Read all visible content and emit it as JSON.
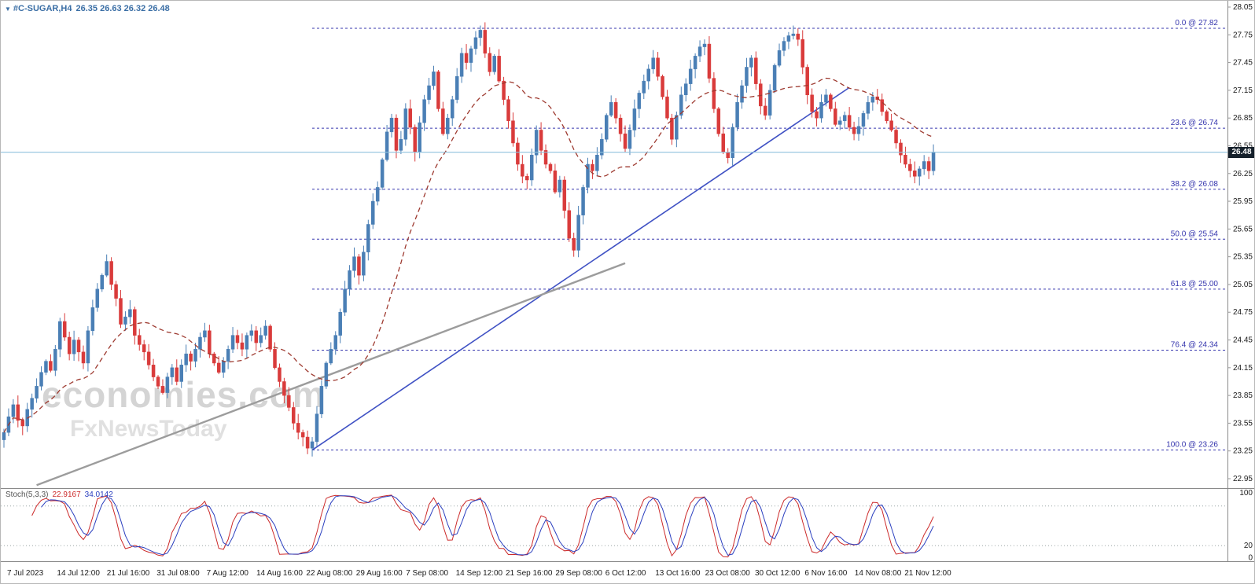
{
  "header": {
    "symbol": "#C-SUGAR,H4",
    "quote": "26.35 26.63 26.32 26.48"
  },
  "watermark": {
    "line1": "economies.com",
    "line2": "FxNewsToday"
  },
  "colors": {
    "up": "#4a7fb5",
    "down": "#d93b3b",
    "ma": "#9e3a30",
    "fib": "#3434ad",
    "trend_blue": "#4052c4",
    "trend_gray": "#9c9c9c",
    "price_line": "#8fc1dd",
    "badge_bg": "#15202b",
    "axis_text": "#1a1a1a",
    "separator": "#8a8a8a",
    "stoch_main": "#cc2a2a",
    "stoch_signal": "#2b3fbf",
    "stoch_level": "#9aa6a6"
  },
  "chart_data": {
    "type": "candlestick",
    "symbol": "#C-SUGAR",
    "timeframe": "H4",
    "quote": {
      "open": "26.35",
      "high": "26.63",
      "low": "26.32",
      "close": "26.48"
    },
    "current_price": "26.48",
    "y_axis": {
      "min": 22.95,
      "max": 28.05,
      "tick_step": 0.3,
      "ticks": [
        "28.05",
        "27.75",
        "27.45",
        "27.15",
        "26.85",
        "26.55",
        "26.25",
        "25.95",
        "25.65",
        "25.35",
        "25.05",
        "24.75",
        "24.45",
        "24.15",
        "23.85",
        "23.55",
        "23.25",
        "22.95"
      ]
    },
    "x_ticks": [
      "7 Jul 2023",
      "14 Jul 12:00",
      "21 Jul 16:00",
      "31 Jul 08:00",
      "7 Aug 12:00",
      "14 Aug 16:00",
      "22 Aug 08:00",
      "29 Aug 16:00",
      "7 Sep 08:00",
      "14 Sep 12:00",
      "21 Sep 16:00",
      "29 Sep 08:00",
      "6 Oct 12:00",
      "13 Oct 16:00",
      "23 Oct 08:00",
      "30 Oct 12:00",
      "6 Nov 16:00",
      "14 Nov 08:00",
      "21 Nov 12:00"
    ],
    "closes": [
      23.45,
      23.62,
      23.75,
      23.58,
      23.52,
      23.7,
      23.82,
      23.95,
      24.1,
      24.22,
      24.12,
      24.35,
      24.65,
      24.48,
      24.3,
      24.45,
      24.32,
      24.2,
      24.55,
      24.8,
      25.0,
      25.15,
      25.3,
      25.05,
      24.9,
      24.62,
      24.7,
      24.78,
      24.5,
      24.4,
      24.32,
      24.18,
      24.05,
      23.95,
      23.88,
      24.05,
      24.15,
      24.0,
      24.18,
      24.3,
      24.22,
      24.35,
      24.48,
      24.55,
      24.3,
      24.2,
      24.1,
      24.22,
      24.35,
      24.5,
      24.42,
      24.35,
      24.5,
      24.55,
      24.42,
      24.5,
      24.6,
      24.35,
      24.15,
      24.0,
      23.85,
      23.72,
      23.55,
      23.45,
      23.4,
      23.28,
      23.35,
      23.65,
      23.95,
      24.2,
      24.35,
      24.5,
      24.75,
      25.0,
      25.2,
      25.35,
      25.15,
      25.4,
      25.7,
      25.95,
      26.1,
      26.4,
      26.7,
      26.85,
      26.5,
      26.62,
      26.95,
      26.75,
      26.48,
      26.8,
      27.05,
      27.2,
      27.35,
      26.95,
      26.68,
      26.85,
      27.05,
      27.3,
      27.55,
      27.45,
      27.6,
      27.72,
      27.8,
      27.55,
      27.35,
      27.52,
      27.25,
      27.05,
      26.82,
      26.58,
      26.35,
      26.22,
      26.18,
      26.45,
      26.72,
      26.5,
      26.35,
      26.28,
      26.05,
      26.18,
      25.85,
      25.55,
      25.42,
      25.8,
      26.1,
      26.35,
      26.28,
      26.45,
      26.62,
      26.88,
      27.02,
      26.85,
      26.68,
      26.52,
      26.72,
      26.95,
      27.12,
      27.25,
      27.38,
      27.5,
      27.3,
      27.08,
      26.85,
      26.62,
      26.88,
      27.1,
      27.22,
      27.38,
      27.52,
      27.62,
      27.65,
      27.28,
      26.95,
      26.68,
      26.48,
      26.42,
      26.75,
      27.02,
      27.2,
      27.4,
      27.5,
      27.22,
      26.98,
      26.88,
      27.15,
      27.42,
      27.58,
      27.68,
      27.74,
      27.76,
      27.7,
      27.4,
      27.1,
      26.92,
      26.85,
      27.02,
      27.1,
      26.95,
      26.78,
      26.82,
      26.88,
      26.75,
      26.68,
      26.76,
      26.9,
      27.02,
      27.08,
      27.05,
      26.92,
      26.82,
      26.72,
      26.58,
      26.45,
      26.35,
      26.28,
      26.22,
      26.3,
      26.38,
      26.28,
      26.48
    ],
    "wick_amp": 0.1,
    "wick_pattern": [
      0.4,
      0.9,
      0.6,
      1.0,
      0.3,
      0.7,
      0.5,
      0.85,
      0.65,
      0.2,
      0.75,
      0.45
    ],
    "ma": {
      "period": 20,
      "style": "dashed"
    },
    "fibonacci": {
      "start_bar": 66,
      "end_bar": 102,
      "levels": [
        {
          "label": "0.0 @ 27.82",
          "price": 27.82
        },
        {
          "label": "23.6 @ 26.74",
          "price": 26.74
        },
        {
          "label": "38.2 @ 26.08",
          "price": 26.08
        },
        {
          "label": "50.0 @ 25.54",
          "price": 25.54
        },
        {
          "label": "61.8 @ 25.00",
          "price": 25.0
        },
        {
          "label": "76.4 @ 24.34",
          "price": 24.34
        },
        {
          "label": "100.0 @ 23.26",
          "price": 23.26
        }
      ]
    },
    "trendlines": [
      {
        "name": "uptrend-support-line",
        "color_key": "trend_blue",
        "width": 1.6,
        "from": {
          "bar": 66,
          "price": 23.26
        },
        "to": {
          "bar": 181,
          "price": 27.18
        }
      },
      {
        "name": "long-term-gray-line",
        "color_key": "trend_gray",
        "width": 2.4,
        "from": {
          "bar": 7,
          "price": 22.88
        },
        "to": {
          "bar": 133,
          "price": 25.28
        }
      }
    ],
    "stochastic": {
      "label": "Stoch(5,3,3)",
      "value_main": "22.9167",
      "value_signal": "34.0142",
      "k_period": 5,
      "slowing": 3,
      "d_period": 3,
      "level_lines": [
        20,
        80
      ],
      "range_labels": [
        {
          "text": "100",
          "value": 100
        },
        {
          "text": "20",
          "value": 20
        },
        {
          "text": "0",
          "value": 0
        }
      ]
    }
  }
}
